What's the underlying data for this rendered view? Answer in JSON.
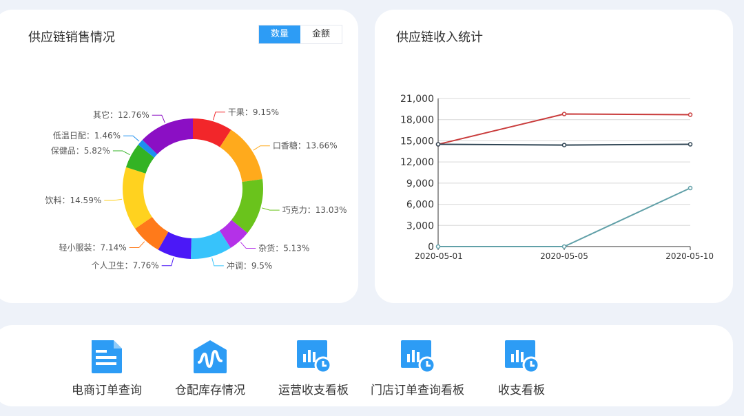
{
  "sales_card": {
    "title": "供应链销售情况",
    "toggle": [
      {
        "label": "数量",
        "active": true
      },
      {
        "label": "金额",
        "active": false
      }
    ]
  },
  "income_card": {
    "title": "供应链收入统计"
  },
  "chart_data": [
    {
      "type": "pie",
      "donut": true,
      "title": "",
      "slices": [
        {
          "label": "干果",
          "value": 9.15,
          "display": "干果：9.15%",
          "color": "#f2262a"
        },
        {
          "label": "口香糖",
          "value": 13.66,
          "display": "口香糖：13.66%",
          "color": "#ffaa1c"
        },
        {
          "label": "巧克力",
          "value": 13.03,
          "display": "巧克力：13.03%",
          "color": "#6ac31c"
        },
        {
          "label": "杂货",
          "value": 5.13,
          "display": "杂货：5.13%",
          "color": "#b431e8"
        },
        {
          "label": "冲调",
          "value": 9.5,
          "display": "冲调：9.5%",
          "color": "#37c3fb"
        },
        {
          "label": "个人卫生",
          "value": 7.76,
          "display": "个人卫生：7.76%",
          "color": "#4b18f7"
        },
        {
          "label": "轻小服装",
          "value": 7.14,
          "display": "轻小服装：7.14%",
          "color": "#ff7a1a"
        },
        {
          "label": "饮料",
          "value": 14.59,
          "display": "饮料：14.59%",
          "color": "#ffd21f"
        },
        {
          "label": "保健品",
          "value": 5.82,
          "display": "保健品：5.82%",
          "color": "#33b324"
        },
        {
          "label": "低温日配",
          "value": 1.46,
          "display": "低温日配：1.46%",
          "color": "#1d8ff0"
        },
        {
          "label": "其它",
          "value": 12.76,
          "display": "其它：12.76%",
          "color": "#8b0fc4"
        }
      ]
    },
    {
      "type": "line",
      "title": "",
      "xlabel": "",
      "ylabel": "",
      "x": [
        "2020-05-01",
        "2020-05-05",
        "2020-05-10"
      ],
      "ylim": [
        0,
        21000
      ],
      "yticks": [
        "0",
        "3,000",
        "6,000",
        "9,000",
        "12,000",
        "15,000",
        "18,000",
        "21,000"
      ],
      "grid": true,
      "series": [
        {
          "values": [
            14500,
            18800,
            18700
          ],
          "color": "#c93b3b"
        },
        {
          "values": [
            14500,
            14400,
            14500
          ],
          "color": "#2f4554"
        },
        {
          "values": [
            0,
            0,
            8300
          ],
          "color": "#61a0a8"
        }
      ]
    }
  ],
  "quick_links": [
    {
      "label": "电商订单查询",
      "icon": "document-icon"
    },
    {
      "label": "仓配库存情况",
      "icon": "warehouse-icon"
    },
    {
      "label": "运营收支看板",
      "icon": "dashboard-chart-icon"
    },
    {
      "label": "门店订单查询看板",
      "icon": "dashboard-chart-icon"
    },
    {
      "label": "收支看板",
      "icon": "dashboard-chart-icon"
    }
  ],
  "colors": {
    "accent": "#2d9cf5",
    "background": "#eef2f9",
    "card": "#ffffff"
  }
}
